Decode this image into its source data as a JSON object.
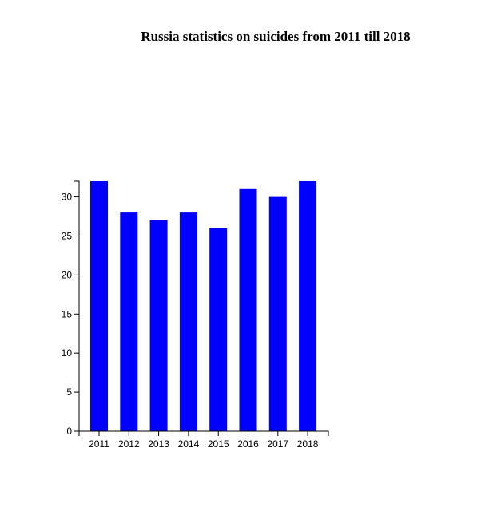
{
  "chart_data": {
    "type": "bar",
    "title": "Russia statistics on suicides from 2011 till 2018",
    "xlabel": "",
    "ylabel": "",
    "categories": [
      "2011",
      "2012",
      "2013",
      "2014",
      "2015",
      "2016",
      "2017",
      "2018"
    ],
    "values": [
      32,
      28,
      27,
      28,
      26,
      31,
      30,
      32
    ],
    "ylim": [
      0,
      32
    ],
    "yticks": [
      0,
      5,
      10,
      15,
      20,
      25,
      30
    ],
    "bar_color": "#0000ff",
    "grid": false,
    "legend": "none"
  }
}
